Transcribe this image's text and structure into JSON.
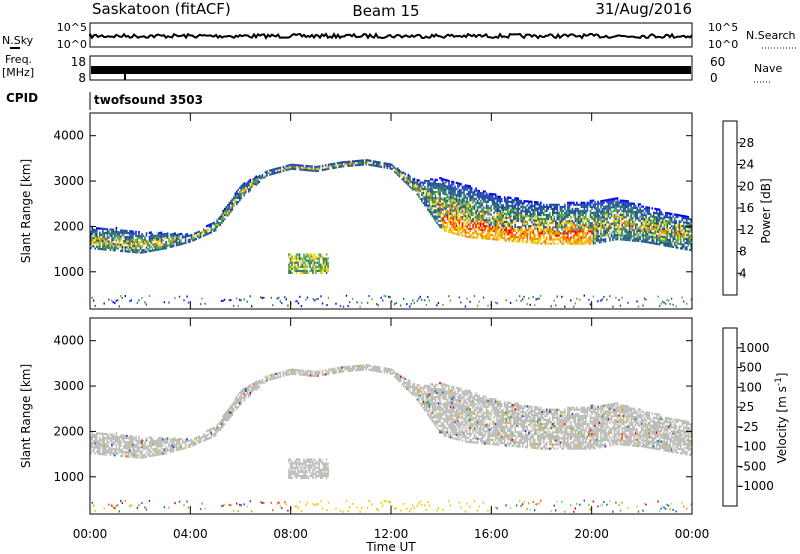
{
  "header": {
    "station": "Saskatoon (fitACF)",
    "beam": "Beam 15",
    "date": "31/Aug/2016"
  },
  "noise_panel": {
    "left_label": "N.Sky",
    "left_ticks": [
      "10^5",
      "10^0"
    ],
    "right_ticks": [
      "10^5",
      "10^0"
    ],
    "right_label": "N.Search"
  },
  "freq_panel": {
    "left_label_1": "Freq.",
    "left_label_2": "[MHz]",
    "left_ticks": [
      "18",
      "8"
    ],
    "right_ticks": [
      "60",
      "0"
    ],
    "right_label": "Nave"
  },
  "cpid": {
    "label": "CPID",
    "value": "twofsound 3503"
  },
  "colors": {
    "power_scale": [
      "#0000ff",
      "#1f4aa8",
      "#2e7a5a",
      "#56a94c",
      "#f0d000",
      "#f09a00",
      "#ff5a00",
      "#ff0000"
    ],
    "velocity_scale": [
      "#e00000",
      "#f05a00",
      "#f09a00",
      "#f0c800",
      "#bfbfbf",
      "#66c133",
      "#2f8a3d",
      "#1f5fb0",
      "#2a3fd0"
    ],
    "ground_scatter": "#bcbcb8"
  },
  "chart_data": [
    {
      "type": "heatmap",
      "panel": "power",
      "ylabel": "Slant Range [km]",
      "yticks": [
        "1000",
        "2000",
        "3000",
        "4000"
      ],
      "ylim": [
        180,
        4500
      ],
      "colorbar_label": "Power [dB]",
      "colorbar_ticks": [
        "4",
        "8",
        "12",
        "16",
        "20",
        "24",
        "28"
      ],
      "clim": [
        0,
        32
      ],
      "x_hours": [
        0,
        1,
        2,
        3,
        4,
        5,
        6,
        7,
        8,
        9,
        10,
        11,
        12,
        13,
        14,
        15,
        16,
        17,
        18,
        19,
        20,
        21,
        22,
        23,
        24
      ],
      "scatter_lower_km": [
        1500,
        1450,
        1400,
        1500,
        1650,
        1900,
        2600,
        3100,
        3250,
        3200,
        3300,
        3350,
        3250,
        2700,
        1900,
        1750,
        1700,
        1650,
        1600,
        1600,
        1600,
        1700,
        1650,
        1550,
        1450
      ],
      "scatter_upper_km": [
        1950,
        1950,
        1850,
        1850,
        1800,
        2100,
        2900,
        3200,
        3350,
        3300,
        3400,
        3450,
        3350,
        3000,
        3050,
        2900,
        2700,
        2600,
        2500,
        2500,
        2550,
        2600,
        2450,
        2300,
        2200
      ],
      "secondary_echo": {
        "hours": [
          7.9,
          9.5
        ],
        "lower_km": 1000,
        "upper_km": 1450
      },
      "grid": false
    },
    {
      "type": "heatmap",
      "panel": "velocity",
      "ylabel": "Slant Range [km]",
      "yticks": [
        "1000",
        "2000",
        "3000",
        "4000"
      ],
      "ylim": [
        180,
        4500
      ],
      "colorbar_label": "Velocity [m s^-1]",
      "colorbar_ticks": [
        "-1000",
        "-500",
        "-100",
        "-25",
        "25",
        "100",
        "500",
        "1000"
      ],
      "clim": [
        -1500,
        1500
      ],
      "grid": false
    }
  ],
  "xaxis": {
    "label": "Time UT",
    "ticks": [
      "00:00",
      "04:00",
      "08:00",
      "12:00",
      "16:00",
      "20:00",
      "00:00"
    ]
  }
}
